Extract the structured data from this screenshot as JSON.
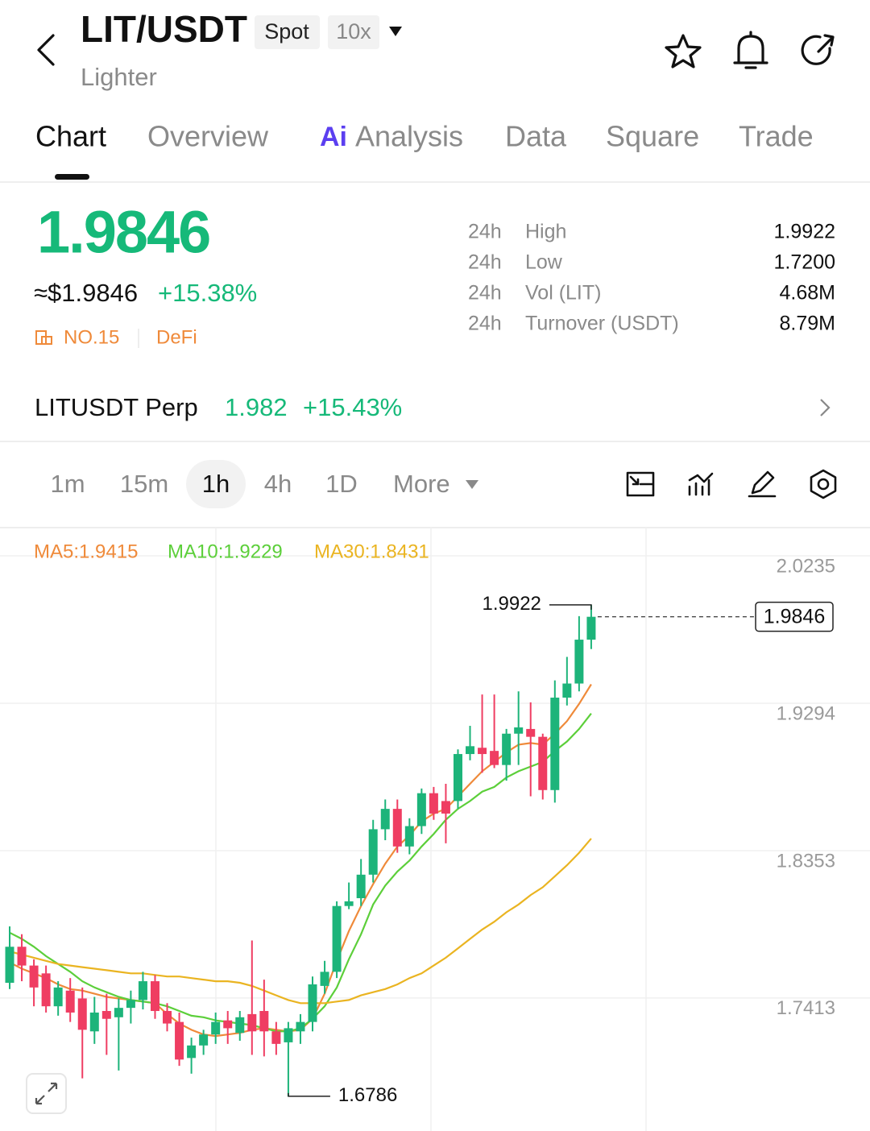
{
  "header": {
    "pair": "LIT/USDT",
    "market": "Spot",
    "leverage": "10x",
    "name": "Lighter"
  },
  "tabs": [
    "Chart",
    "Overview",
    "Analysis",
    "Data",
    "Square",
    "Trade"
  ],
  "ai_badge": "Ai",
  "active_tab": 0,
  "price": {
    "last": "1.9846",
    "fiat": "≈$1.9846",
    "change": "+15.38%",
    "rank": "NO.15",
    "sector": "DeFi"
  },
  "stats": [
    {
      "period": "24h",
      "label": "High",
      "value": "1.9922"
    },
    {
      "period": "24h",
      "label": "Low",
      "value": "1.7200"
    },
    {
      "period": "24h",
      "label": "Vol (LIT)",
      "value": "4.68M"
    },
    {
      "period": "24h",
      "label": "Turnover (USDT)",
      "value": "8.79M"
    }
  ],
  "perp": {
    "name": "LITUSDT Perp",
    "price": "1.982",
    "change": "+15.43%"
  },
  "intervals": [
    "1m",
    "15m",
    "1h",
    "4h",
    "1D",
    "More"
  ],
  "active_interval": 2,
  "chart_data": {
    "type": "candlestick",
    "grid": true,
    "ylim": [
      1.6564,
      2.0415
    ],
    "yticks": [
      1.7413,
      1.8353,
      1.9294,
      2.0235
    ],
    "up_color": "#1db47a",
    "down_color": "#ef3d62",
    "open": [
      1.751,
      1.774,
      1.762,
      1.757,
      1.736,
      1.746,
      1.741,
      1.72,
      1.733,
      1.729,
      1.735,
      1.74,
      1.752,
      1.733,
      1.726,
      1.703,
      1.711,
      1.718,
      1.727,
      1.719,
      1.731,
      1.733,
      1.72,
      1.713,
      1.72,
      1.726,
      1.749,
      1.758,
      1.8,
      1.805,
      1.82,
      1.849,
      1.862,
      1.838,
      1.851,
      1.872,
      1.867,
      1.867,
      1.897,
      1.901,
      1.899,
      1.89,
      1.91,
      1.913,
      1.908,
      1.874,
      1.933,
      1.942,
      1.97
    ],
    "high": [
      1.787,
      1.782,
      1.766,
      1.762,
      1.752,
      1.754,
      1.748,
      1.742,
      1.744,
      1.741,
      1.746,
      1.758,
      1.756,
      1.738,
      1.732,
      1.716,
      1.721,
      1.732,
      1.733,
      1.733,
      1.778,
      1.753,
      1.726,
      1.726,
      1.731,
      1.755,
      1.765,
      1.803,
      1.815,
      1.83,
      1.855,
      1.868,
      1.868,
      1.856,
      1.875,
      1.876,
      1.878,
      1.9,
      1.915,
      1.935,
      1.935,
      1.913,
      1.937,
      1.93,
      1.91,
      1.944,
      1.959,
      1.985,
      1.9922
    ],
    "low": [
      1.747,
      1.752,
      1.736,
      1.732,
      1.73,
      1.726,
      1.69,
      1.712,
      1.705,
      1.695,
      1.725,
      1.734,
      1.728,
      1.72,
      1.698,
      1.693,
      1.705,
      1.712,
      1.712,
      1.714,
      1.705,
      1.704,
      1.705,
      1.6786,
      1.712,
      1.72,
      1.744,
      1.754,
      1.798,
      1.8,
      1.815,
      1.842,
      1.834,
      1.833,
      1.846,
      1.855,
      1.84,
      1.862,
      1.893,
      1.885,
      1.888,
      1.88,
      1.89,
      1.87,
      1.868,
      1.866,
      1.928,
      1.937,
      1.964
    ],
    "close": [
      1.774,
      1.762,
      1.748,
      1.736,
      1.748,
      1.732,
      1.721,
      1.732,
      1.728,
      1.735,
      1.74,
      1.752,
      1.733,
      1.725,
      1.702,
      1.711,
      1.718,
      1.726,
      1.722,
      1.729,
      1.72,
      1.72,
      1.712,
      1.722,
      1.726,
      1.75,
      1.758,
      1.8,
      1.803,
      1.82,
      1.849,
      1.862,
      1.838,
      1.851,
      1.872,
      1.859,
      1.859,
      1.897,
      1.902,
      1.897,
      1.89,
      1.91,
      1.914,
      1.908,
      1.874,
      1.933,
      1.942,
      1.97,
      1.9846
    ],
    "ma": [
      {
        "name": "MA5",
        "label": "MA5:1.9415",
        "color": "#ef8a3a",
        "values": [
          1.764,
          1.76,
          1.757,
          1.754,
          1.75,
          1.747,
          1.746,
          1.744,
          1.742,
          1.741,
          1.74,
          1.739,
          1.738,
          1.731,
          1.725,
          1.721,
          1.718,
          1.717,
          1.718,
          1.719,
          1.721,
          1.722,
          1.721,
          1.72,
          1.721,
          1.728,
          1.744,
          1.765,
          1.784,
          1.8,
          1.814,
          1.827,
          1.838,
          1.845,
          1.854,
          1.859,
          1.862,
          1.87,
          1.878,
          1.886,
          1.892,
          1.898,
          1.903,
          1.904,
          1.903,
          1.91,
          1.918,
          1.929,
          1.9415
        ]
      },
      {
        "name": "MA10",
        "label": "MA10:1.9229",
        "color": "#5ccf3a",
        "values": [
          1.783,
          1.779,
          1.774,
          1.768,
          1.763,
          1.758,
          1.752,
          1.748,
          1.745,
          1.742,
          1.74,
          1.739,
          1.738,
          1.736,
          1.733,
          1.73,
          1.729,
          1.727,
          1.726,
          1.725,
          1.724,
          1.722,
          1.72,
          1.72,
          1.722,
          1.728,
          1.736,
          1.748,
          1.766,
          1.782,
          1.801,
          1.813,
          1.822,
          1.829,
          1.838,
          1.846,
          1.855,
          1.862,
          1.867,
          1.873,
          1.876,
          1.882,
          1.886,
          1.889,
          1.892,
          1.899,
          1.905,
          1.913,
          1.9229
        ]
      },
      {
        "name": "MA30",
        "label": "MA30:1.8431",
        "color": "#eab421",
        "values": [
          1.771,
          1.769,
          1.767,
          1.765,
          1.763,
          1.762,
          1.761,
          1.76,
          1.759,
          1.758,
          1.757,
          1.757,
          1.756,
          1.755,
          1.755,
          1.754,
          1.753,
          1.752,
          1.752,
          1.751,
          1.749,
          1.746,
          1.743,
          1.74,
          1.738,
          1.738,
          1.738,
          1.739,
          1.74,
          1.743,
          1.745,
          1.747,
          1.75,
          1.754,
          1.757,
          1.762,
          1.767,
          1.773,
          1.779,
          1.785,
          1.79,
          1.796,
          1.801,
          1.807,
          1.812,
          1.819,
          1.826,
          1.834,
          1.8431
        ]
      }
    ],
    "max_label": 1.9922,
    "min_label": 1.6786,
    "last_price": 1.9846
  }
}
